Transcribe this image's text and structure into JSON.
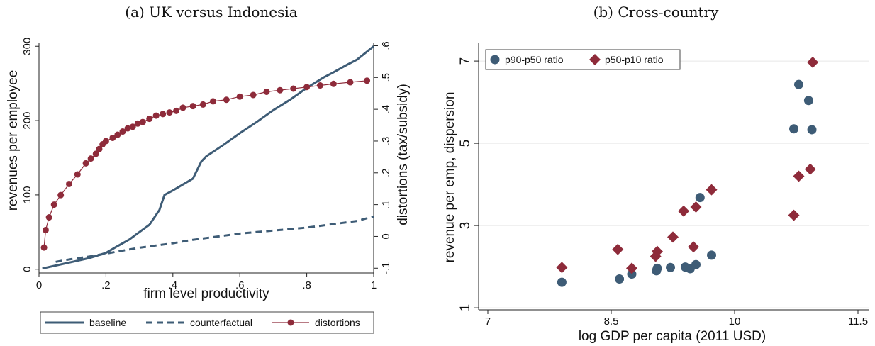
{
  "chart_data": [
    {
      "type": "line",
      "title": "(a) UK versus Indonesia",
      "xlabel": "firm level productivity",
      "ylabel": "revenues per employee",
      "y2label": "distortions (tax/subsidy)",
      "xlim": [
        0,
        1
      ],
      "ylim": [
        -5,
        305
      ],
      "y2lim": [
        -0.115,
        0.61
      ],
      "xticks": [
        0,
        0.2,
        0.4,
        0.6,
        0.8,
        1
      ],
      "xtick_labels": [
        "0",
        ".2",
        ".4",
        ".6",
        ".8",
        "1"
      ],
      "yticks": [
        0,
        100,
        200,
        300
      ],
      "ytick_labels": [
        "0",
        "100",
        "200",
        "300"
      ],
      "y2ticks": [
        -0.1,
        0,
        0.1,
        0.2,
        0.3,
        0.4,
        0.5,
        0.6
      ],
      "y2tick_labels": [
        "-.1",
        "0",
        ".1",
        ".2",
        ".3",
        ".4",
        ".5",
        ".6"
      ],
      "grid": false,
      "legend": "bottom",
      "series": [
        {
          "name": "baseline",
          "axis": "left",
          "color": "#3e5c76",
          "style": "solid",
          "x": [
            0.01,
            0.05,
            0.1,
            0.15,
            0.2,
            0.23,
            0.25,
            0.27,
            0.3,
            0.33,
            0.36,
            0.375,
            0.4,
            0.43,
            0.46,
            0.485,
            0.5,
            0.55,
            0.6,
            0.65,
            0.7,
            0.75,
            0.8,
            0.85,
            0.88,
            0.92,
            0.95,
            1.0
          ],
          "y": [
            1,
            5,
            10,
            15,
            22,
            30,
            35,
            40,
            50,
            60,
            80,
            100,
            106,
            114,
            122,
            145,
            152,
            167,
            183,
            198,
            214,
            228,
            244,
            258,
            265,
            275,
            282,
            300
          ]
        },
        {
          "name": "counterfactual",
          "axis": "left",
          "color": "#3e5c76",
          "style": "dashed",
          "x": [
            0.05,
            0.1,
            0.15,
            0.2,
            0.25,
            0.3,
            0.35,
            0.4,
            0.45,
            0.5,
            0.55,
            0.6,
            0.65,
            0.7,
            0.75,
            0.8,
            0.85,
            0.9,
            0.95,
            1.0
          ],
          "y": [
            10,
            14,
            17,
            21,
            25,
            29,
            32,
            35,
            39,
            42,
            45,
            48,
            50,
            52,
            54,
            56,
            59,
            62,
            65,
            71
          ]
        },
        {
          "name": "distortions",
          "axis": "right",
          "color": "#8e2b3a",
          "style": "solid-markers",
          "x": [
            0.015,
            0.02,
            0.03,
            0.045,
            0.065,
            0.09,
            0.115,
            0.14,
            0.155,
            0.17,
            0.18,
            0.19,
            0.2,
            0.22,
            0.235,
            0.25,
            0.265,
            0.28,
            0.295,
            0.31,
            0.33,
            0.35,
            0.37,
            0.39,
            0.41,
            0.43,
            0.46,
            0.49,
            0.52,
            0.56,
            0.6,
            0.64,
            0.68,
            0.72,
            0.76,
            0.8,
            0.84,
            0.88,
            0.93,
            0.98
          ],
          "y": [
            -0.035,
            0.02,
            0.06,
            0.1,
            0.13,
            0.165,
            0.195,
            0.23,
            0.245,
            0.26,
            0.275,
            0.29,
            0.3,
            0.31,
            0.32,
            0.33,
            0.34,
            0.345,
            0.355,
            0.36,
            0.37,
            0.38,
            0.385,
            0.39,
            0.395,
            0.405,
            0.41,
            0.415,
            0.425,
            0.43,
            0.44,
            0.445,
            0.455,
            0.46,
            0.465,
            0.47,
            0.475,
            0.48,
            0.485,
            0.49
          ]
        }
      ]
    },
    {
      "type": "scatter",
      "title": "(b) Cross-country",
      "xlabel": "log GDP per capita (2011 USD)",
      "ylabel": "revenue per emp, dispersion",
      "xlim": [
        7,
        11.5
      ],
      "ylim": [
        0.95,
        7.45
      ],
      "xticks": [
        7,
        8.5,
        10,
        11.5
      ],
      "xtick_labels": [
        "7",
        "8.5",
        "10",
        "11.5"
      ],
      "yticks": [
        1,
        3,
        5,
        7
      ],
      "ytick_labels": [
        "1",
        "3",
        "5",
        "7"
      ],
      "grid": true,
      "legend": "top-left",
      "series": [
        {
          "name": "p90-p50 ratio",
          "marker": "circle",
          "color": "#3e5c76",
          "x": [
            7.9,
            8.6,
            8.75,
            9.05,
            9.06,
            9.22,
            9.4,
            9.46,
            9.53,
            9.58,
            9.72,
            10.72,
            10.78,
            10.9,
            10.94
          ],
          "y": [
            1.62,
            1.7,
            1.82,
            1.9,
            1.96,
            1.98,
            1.99,
            1.95,
            2.05,
            3.68,
            2.28,
            5.35,
            6.43,
            6.04,
            5.33
          ]
        },
        {
          "name": "p50-p10 ratio",
          "marker": "diamond",
          "color": "#8e2b3a",
          "x": [
            7.9,
            8.58,
            8.75,
            9.04,
            9.06,
            9.25,
            9.38,
            9.5,
            9.53,
            9.72,
            10.72,
            10.78,
            10.92,
            10.95
          ],
          "y": [
            1.98,
            2.42,
            1.96,
            2.25,
            2.37,
            2.72,
            3.35,
            2.48,
            3.45,
            3.87,
            3.25,
            4.2,
            4.37,
            6.97
          ]
        }
      ]
    }
  ]
}
